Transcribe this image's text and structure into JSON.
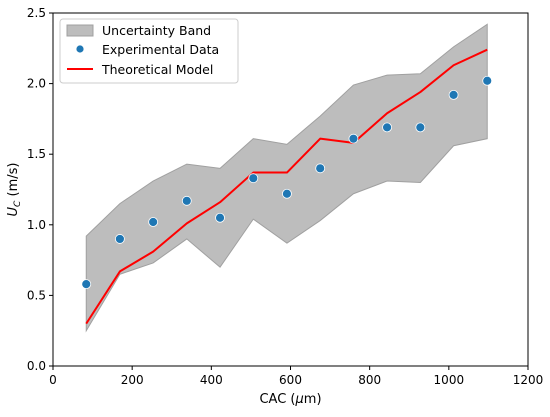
{
  "chart_data": {
    "type": "line",
    "title": "",
    "xlabel": "CAC (μm)",
    "ylabel": "U_C (m/s)",
    "ylabel_main": "U",
    "ylabel_sub": "C",
    "ylabel_unit": " (m/s)",
    "xlim": [
      0,
      1200
    ],
    "ylim": [
      0,
      2.5
    ],
    "xticks": [
      0,
      200,
      400,
      600,
      800,
      1000,
      1200
    ],
    "yticks": [
      0.0,
      0.5,
      1.0,
      1.5,
      2.0,
      2.5
    ],
    "xtick_labels": [
      "0",
      "200",
      "400",
      "600",
      "800",
      "1000",
      "1200"
    ],
    "ytick_labels": [
      "0.0",
      "0.5",
      "1.0",
      "1.5",
      "2.0",
      "2.5"
    ],
    "grid": false,
    "legend_position": "top-left",
    "x": [
      84,
      169,
      253,
      338,
      422,
      506,
      591,
      675,
      759,
      844,
      928,
      1012,
      1097
    ],
    "series": [
      {
        "name": "Uncertainty Band",
        "kind": "band",
        "color": "#bdbdbd",
        "edge_color": "#a0a0a0",
        "lower": [
          0.25,
          0.65,
          0.73,
          0.9,
          0.7,
          1.04,
          0.87,
          1.03,
          1.22,
          1.31,
          1.3,
          1.56,
          1.61
        ],
        "upper": [
          0.92,
          1.15,
          1.31,
          1.43,
          1.4,
          1.61,
          1.57,
          1.77,
          1.99,
          2.06,
          2.07,
          2.26,
          2.42
        ]
      },
      {
        "name": "Experimental Data",
        "kind": "scatter",
        "color": "#1f77b4",
        "values": [
          0.58,
          0.9,
          1.02,
          1.17,
          1.05,
          1.33,
          1.22,
          1.4,
          1.61,
          1.69,
          1.69,
          1.92,
          2.02
        ]
      },
      {
        "name": "Theoretical Model",
        "kind": "line",
        "color": "#ff0000",
        "values": [
          0.3,
          0.67,
          0.81,
          1.01,
          1.16,
          1.37,
          1.37,
          1.61,
          1.58,
          1.79,
          1.94,
          2.13,
          2.24
        ]
      }
    ]
  }
}
